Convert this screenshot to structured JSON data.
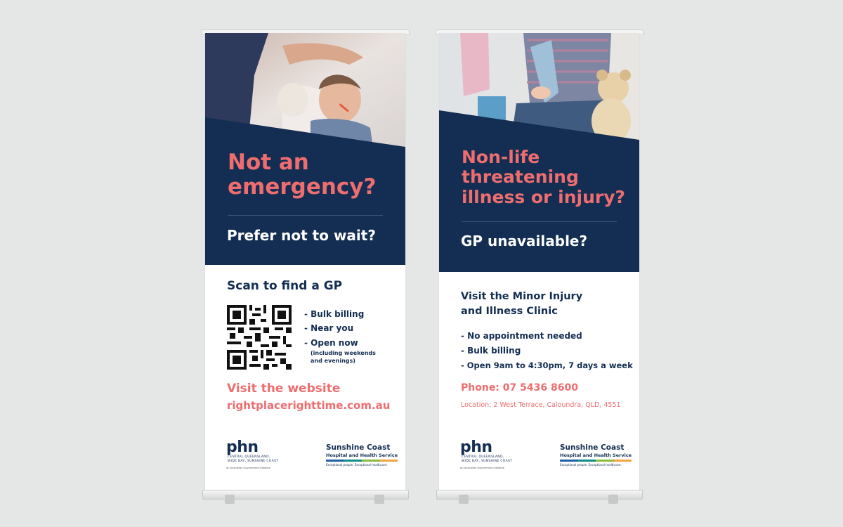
{
  "banner_left": {
    "headline": "Not an emergency?",
    "subhead": "Prefer not to wait?",
    "scan_title": "Scan to find a GP",
    "bullets": [
      "- Bulk billing",
      "- Near you",
      "- Open now"
    ],
    "bullet_note_1": "(including weekends",
    "bullet_note_2": "and evenings)",
    "visit_label": "Visit the website",
    "website": "rightplacerighttime.com.au"
  },
  "banner_right": {
    "headline_line1": "Non-life",
    "headline_line2": "threatening",
    "headline_line3": "illness or injury?",
    "subhead": "GP unavailable?",
    "visit_line1": "Visit the Minor Injury",
    "visit_line2": "and Illness Clinic",
    "bullets": [
      "- No appointment needed",
      "- Bulk billing",
      "- Open 9am to 4:30pm, 7 days a week"
    ],
    "phone": "Phone: 07 5436 8600",
    "location": "Location: 2 West Terrace, Caloundra, QLD, 4551"
  },
  "logos": {
    "phn_word": "phn",
    "phn_line1": "CENTRAL QUEENSLAND,",
    "phn_line2": "WIDE BAY, SUNSHINE COAST",
    "phn_gov": "An Australian Government Initiative",
    "scl_name": "Sunshine Coast",
    "scl_sub": "Hospital and Health Service",
    "scl_tag": "Exceptional people. Exceptional healthcare."
  },
  "colors": {
    "navy": "#132e52",
    "coral": "#ee6d6f",
    "background": "#e5e6e6"
  }
}
